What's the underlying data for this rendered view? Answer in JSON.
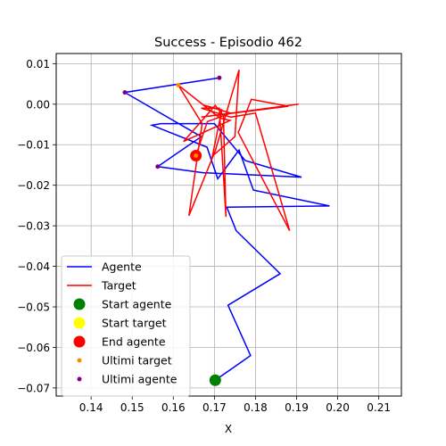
{
  "chart_data": {
    "type": "line",
    "title": "Success - Episodio 462",
    "xlabel": "X",
    "ylabel": "",
    "xlim": [
      0.1315,
      0.2155
    ],
    "ylim": [
      -0.072,
      0.0125
    ],
    "xticks": [
      0.14,
      0.15,
      0.16,
      0.17,
      0.18,
      0.19,
      0.2,
      0.21
    ],
    "yticks": [
      0.01,
      0.0,
      -0.01,
      -0.02,
      -0.03,
      -0.04,
      -0.05,
      -0.06,
      -0.07
    ],
    "grid": true,
    "legend_position": "lower-left",
    "series": [
      {
        "name": "Agente",
        "kind": "line",
        "color": "#0000ff",
        "points": [
          [
            0.1702,
            -0.0681
          ],
          [
            0.1702,
            -0.0681
          ],
          [
            0.1788,
            -0.062
          ],
          [
            0.1733,
            -0.0496
          ],
          [
            0.186,
            -0.0418
          ],
          [
            0.1753,
            -0.0312
          ],
          [
            0.173,
            -0.0254
          ],
          [
            0.198,
            -0.0251
          ],
          [
            0.1795,
            -0.0212
          ],
          [
            0.176,
            -0.0113
          ],
          [
            0.1708,
            -0.0184
          ],
          [
            0.1682,
            -0.0106
          ],
          [
            0.1548,
            -0.0052
          ],
          [
            0.157,
            -0.0048
          ],
          [
            0.17,
            -0.0048
          ],
          [
            0.1775,
            -0.0139
          ],
          [
            0.1912,
            -0.018
          ],
          [
            0.1672,
            -0.0169
          ],
          [
            0.1562,
            -0.0154
          ],
          [
            0.1668,
            -0.008
          ],
          [
            0.1482,
            0.0029
          ],
          [
            0.1712,
            0.0065
          ]
        ]
      },
      {
        "name": "Target",
        "kind": "line",
        "color": "#ff0000",
        "points": [
          [
            0.1655,
            -0.0127
          ],
          [
            0.1683,
            -0.0043
          ],
          [
            0.174,
            -0.0022
          ],
          [
            0.1672,
            -0.0002
          ],
          [
            0.1718,
            -0.0014
          ],
          [
            0.1695,
            -0.0128
          ],
          [
            0.175,
            -0.008
          ],
          [
            0.176,
            0.0085
          ],
          [
            0.1702,
            -0.0115
          ],
          [
            0.1638,
            -0.0275
          ],
          [
            0.167,
            -0.0048
          ],
          [
            0.1612,
            0.0047
          ],
          [
            0.1713,
            -0.0034
          ],
          [
            0.1738,
            -0.004
          ],
          [
            0.1625,
            -0.0092
          ],
          [
            0.1702,
            -0.0003
          ],
          [
            0.1722,
            -0.0028
          ],
          [
            0.1728,
            -0.0278
          ],
          [
            0.1712,
            -0.001
          ],
          [
            0.1668,
            -0.001
          ],
          [
            0.174,
            -0.0032
          ],
          [
            0.18,
            -0.0022
          ],
          [
            0.1883,
            -0.0312
          ],
          [
            0.1758,
            -0.007
          ],
          [
            0.179,
            0.0012
          ],
          [
            0.188,
            -0.0005
          ],
          [
            0.1668,
            -0.0032
          ],
          [
            0.1905,
            0.0
          ]
        ]
      },
      {
        "name": "Start agente",
        "kind": "marker",
        "color": "#008000",
        "radius": 6.5,
        "points": [
          [
            0.1702,
            -0.0681
          ]
        ]
      },
      {
        "name": "Start target",
        "kind": "marker",
        "color": "#ffff00",
        "radius": 6.5,
        "points": [
          [
            0.1655,
            -0.0127
          ]
        ]
      },
      {
        "name": "End agente",
        "kind": "marker",
        "color": "#ff0000",
        "radius": 6.5,
        "points": [
          [
            0.1655,
            -0.0127
          ]
        ]
      },
      {
        "name": "Ultimi target",
        "kind": "marker",
        "color": "#ff8c00",
        "radius": 2.5,
        "points": [
          [
            0.1612,
            0.0047
          ],
          [
            0.1655,
            -0.0127
          ]
        ]
      },
      {
        "name": "Ultimi agente",
        "kind": "marker",
        "color": "#800080",
        "radius": 2.5,
        "points": [
          [
            0.1482,
            0.0029
          ],
          [
            0.1712,
            0.0065
          ],
          [
            0.1562,
            -0.0154
          ]
        ]
      }
    ]
  }
}
